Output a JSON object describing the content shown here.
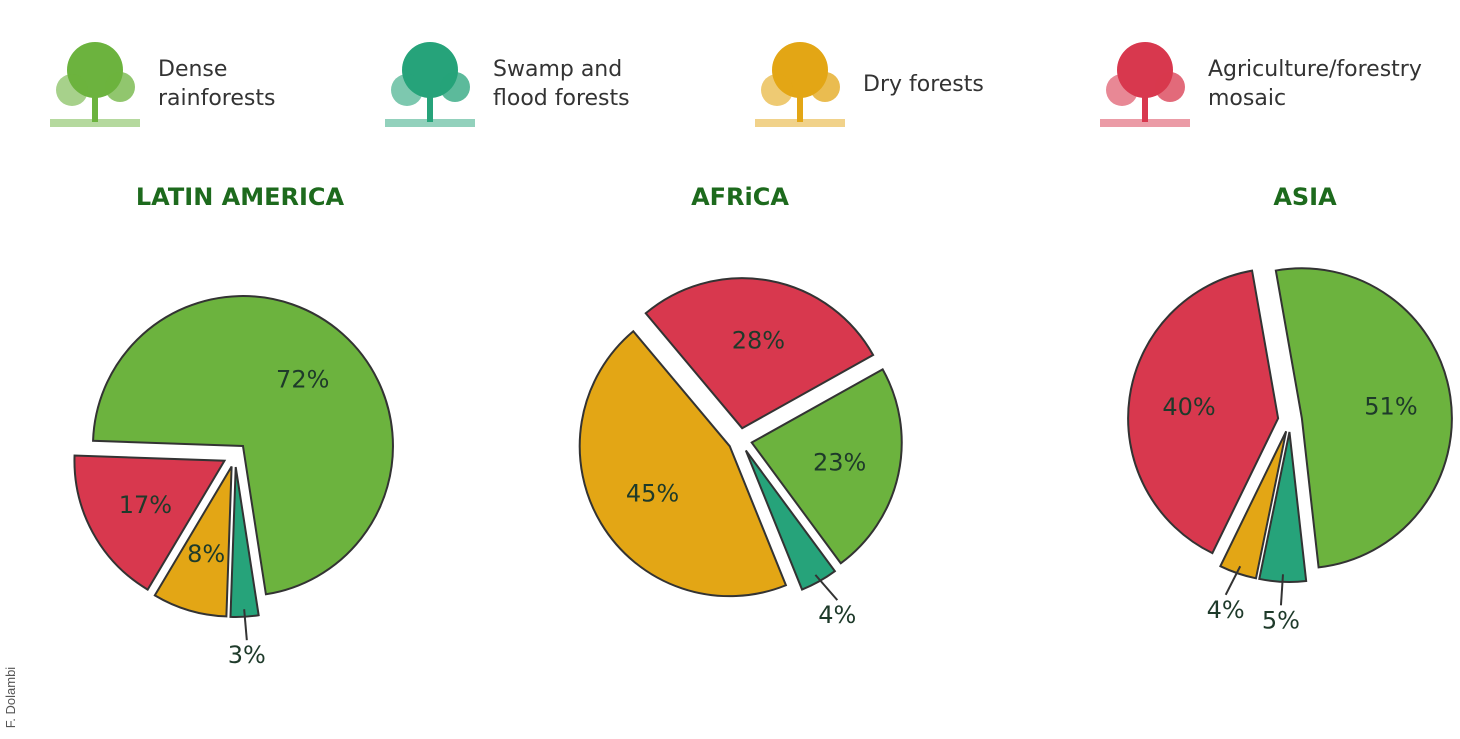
{
  "legend": [
    {
      "name": "Dense rainforests",
      "color": "#6cb33e"
    },
    {
      "name": "Swamp and flood forests",
      "color": "#26a37a"
    },
    {
      "name": "Dry forests",
      "color": "#e3a615"
    },
    {
      "name": "Agriculture/forestry mosaic",
      "color": "#d8384e"
    }
  ],
  "chart_data": [
    {
      "type": "pie",
      "title": "LATIN AMERICA",
      "values": [
        72,
        3,
        8,
        17
      ],
      "value_labels": [
        "72%",
        "3%",
        "8%",
        "17%"
      ],
      "colors": [
        "#6cb33e",
        "#26a37a",
        "#e3a615",
        "#d8384e"
      ]
    },
    {
      "type": "pie",
      "title": "AFRiCA",
      "values": [
        28,
        23,
        4,
        45
      ],
      "value_labels": [
        "28%",
        "23%",
        "4%",
        "45%"
      ],
      "colors": [
        "#d8384e",
        "#6cb33e",
        "#26a37a",
        "#e3a615"
      ]
    },
    {
      "type": "pie",
      "title": "ASIA",
      "values": [
        51,
        5,
        4,
        40
      ],
      "value_labels": [
        "51%",
        "5%",
        "4%",
        "40%"
      ],
      "colors": [
        "#6cb33e",
        "#26a37a",
        "#e3a615",
        "#d8384e"
      ]
    }
  ],
  "credit": "F. Dolambi"
}
